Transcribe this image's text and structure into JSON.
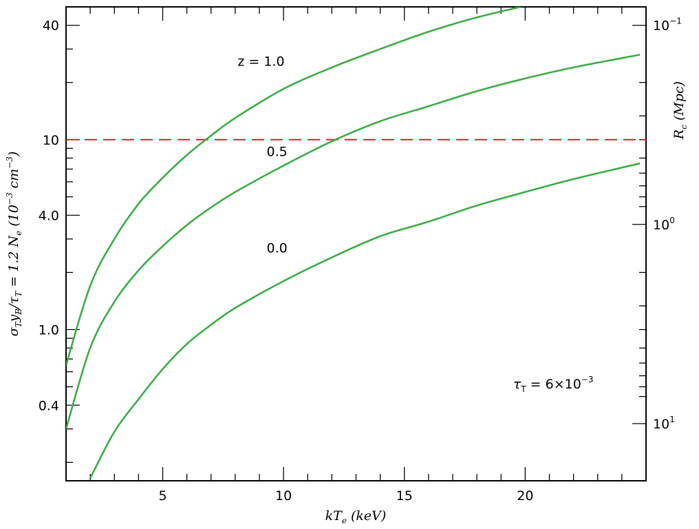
{
  "chart_data": {
    "type": "line",
    "x_axis": {
      "label_main": "kT",
      "label_sub": "e",
      "label_unit": " (keV)",
      "range": [
        1,
        25
      ],
      "ticks": [
        5,
        10,
        15,
        20
      ],
      "tick_labels": [
        "5",
        "10",
        "15",
        "20"
      ],
      "minor_step": 1
    },
    "y_axis_left": {
      "scale": "log",
      "range": [
        0.16,
        50
      ],
      "ticks": [
        0.4,
        1.0,
        4.0,
        10,
        40
      ],
      "tick_labels": [
        "0.4",
        "1.0",
        "4.0",
        "10",
        "40"
      ],
      "minor_ticks": [
        0.2,
        0.3,
        0.5,
        0.6,
        0.7,
        0.8,
        0.9,
        2,
        3,
        5,
        6,
        7,
        8,
        9,
        20,
        30
      ],
      "label_parts": {
        "sigma": "σ",
        "sub_T": "T",
        "y": "y",
        "sub_B": "B",
        "over_tau": "/τ",
        "eq": " = 1.2 N",
        "sub_e": "e",
        "unit_open": " (10",
        "unit_exp": "−3",
        "unit_cm": " cm",
        "unit_exp2": "−3",
        "unit_close": ")"
      }
    },
    "y_axis_right": {
      "scale": "log",
      "label_main": "R",
      "label_sub": "c",
      "label_unit": " (Mpc)",
      "tick_labels": [
        {
          "base": "10",
          "exp": "−1",
          "value": 0.1
        },
        {
          "base": "10",
          "exp": "0",
          "value": 1
        },
        {
          "base": "10",
          "exp": "1",
          "value": 10
        }
      ],
      "left_equiv": [
        40,
        3.58,
        0.32
      ],
      "minor_values": [
        0.2,
        0.3,
        0.4,
        0.5,
        0.6,
        0.7,
        0.8,
        0.9,
        2,
        3,
        4,
        5,
        6,
        7,
        8,
        9
      ]
    },
    "series": [
      {
        "label": "0.0",
        "color": "#3cab46",
        "x": [
          2,
          3,
          4,
          5,
          6,
          7,
          8,
          10,
          12,
          14,
          16,
          18,
          20,
          22,
          24.75
        ],
        "y": [
          0.165,
          0.29,
          0.43,
          0.62,
          0.84,
          1.06,
          1.3,
          1.8,
          2.4,
          3.1,
          3.7,
          4.5,
          5.3,
          6.2,
          7.5
        ]
      },
      {
        "label": "0.5",
        "color": "#3cab46",
        "x": [
          1,
          2,
          3,
          4,
          5,
          6,
          7,
          8,
          10,
          12,
          14,
          16,
          18,
          20,
          22,
          24.75
        ],
        "y": [
          0.3,
          0.8,
          1.4,
          2.05,
          2.75,
          3.55,
          4.4,
          5.3,
          7.3,
          9.8,
          12.5,
          15,
          18,
          21,
          24,
          28
        ]
      },
      {
        "label": "1.0",
        "color": "#3cab46",
        "x": [
          1,
          2,
          3,
          4,
          5,
          6,
          7,
          8,
          10,
          12,
          14,
          16,
          18,
          19.8
        ],
        "y": [
          0.65,
          1.7,
          3.0,
          4.6,
          6.3,
          8.3,
          10.5,
          13,
          18.5,
          24,
          30,
          37,
          44,
          50
        ]
      }
    ],
    "reference_line": {
      "y": 10,
      "color": "#e01e1e",
      "style": "dashed"
    },
    "annotations": {
      "z_label": "z = 1.0",
      "z_pos": [
        8.1,
        24.5
      ],
      "label_05": "0.5",
      "pos_05": [
        9.3,
        8.2
      ],
      "label_00": "0.0",
      "pos_00": [
        9.3,
        2.55
      ],
      "tau_symbol": "τ",
      "tau_sub": "T",
      "tau_value": " = 6×10",
      "tau_exp": "−3",
      "tau_pos": [
        19.5,
        0.49
      ]
    }
  }
}
